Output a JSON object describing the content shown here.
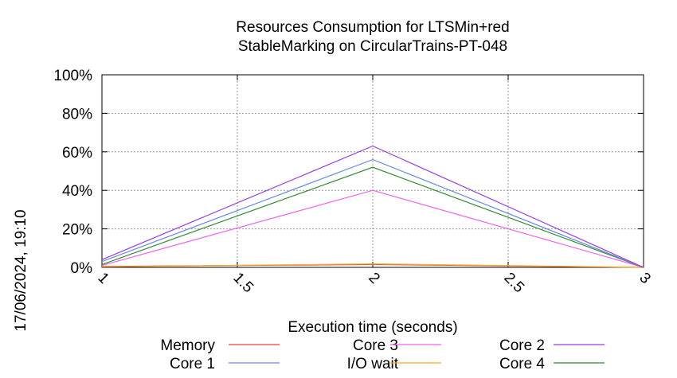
{
  "chart_data": {
    "type": "line",
    "title": "Resources Consumption for LTSMin+red",
    "subtitle": "StableMarking on CircularTrains-PT-048",
    "xlabel": "Execution time (seconds)",
    "ylabel": "",
    "timestamp": "17/06/2024, 19:10",
    "xlim": [
      1,
      3
    ],
    "ylim": [
      0,
      100
    ],
    "x_ticks": [
      "1",
      "1.5",
      "2",
      "2.5",
      "3"
    ],
    "x_tick_values": [
      1,
      1.5,
      2,
      2.5,
      3
    ],
    "y_ticks": [
      "0%",
      "20%",
      "40%",
      "60%",
      "80%",
      "100%"
    ],
    "y_tick_values": [
      0,
      20,
      40,
      60,
      80,
      100
    ],
    "grid": true,
    "legend_position": "bottom",
    "series": [
      {
        "name": "Memory",
        "color": "#e8413a",
        "x": [
          1,
          2,
          3
        ],
        "y": [
          0.5,
          1.5,
          0
        ]
      },
      {
        "name": "Core 1",
        "color": "#6a8be0",
        "x": [
          1,
          2,
          3
        ],
        "y": [
          3,
          56,
          0
        ]
      },
      {
        "name": "Core 3",
        "color": "#f060f0",
        "x": [
          1,
          2,
          3
        ],
        "y": [
          1,
          40,
          0
        ]
      },
      {
        "name": "I/O wait",
        "color": "#f5a623",
        "x": [
          1,
          2,
          3
        ],
        "y": [
          0.3,
          1.8,
          0
        ]
      },
      {
        "name": "Core 2",
        "color": "#9b3fe0",
        "x": [
          1,
          2,
          3
        ],
        "y": [
          4,
          63,
          0
        ]
      },
      {
        "name": "Core 4",
        "color": "#2e8b2e",
        "x": [
          1,
          2,
          3
        ],
        "y": [
          1.5,
          52,
          0
        ]
      }
    ]
  }
}
